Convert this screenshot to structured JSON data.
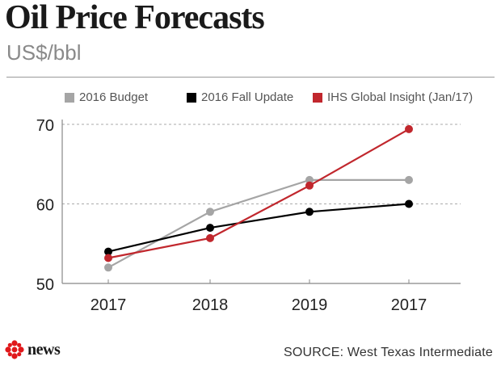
{
  "header": {
    "title": "Oil Price Forecasts",
    "subtitle": "US$/bbl"
  },
  "chart_data": {
    "type": "line",
    "title": "Oil Price Forecasts",
    "ylabel": "US$/bbl",
    "xlabel": "",
    "categories": [
      "2017",
      "2018",
      "2019",
      "2017"
    ],
    "ylim": [
      50,
      70
    ],
    "yticks": [
      50,
      60,
      70
    ],
    "grid": true,
    "legend_position": "top",
    "series": [
      {
        "name": "2016 Budget",
        "color": "#a5a5a5",
        "values": [
          52,
          59,
          63,
          63
        ]
      },
      {
        "name": "2016 Fall Update",
        "color": "#000000",
        "values": [
          54,
          57,
          59,
          60
        ]
      },
      {
        "name": "IHS Global Insight (Jan/17)",
        "color": "#c1272d",
        "values": [
          53.2,
          55.7,
          62.3,
          69.4
        ]
      }
    ]
  },
  "footer": {
    "brand": "news",
    "source": "SOURCE: West Texas Intermediate"
  },
  "colors": {
    "brand_red": "#e0181b",
    "grid": "#aaaaaa",
    "axis": "#888888"
  },
  "icons": {
    "logo": "cbc-gem-icon"
  }
}
